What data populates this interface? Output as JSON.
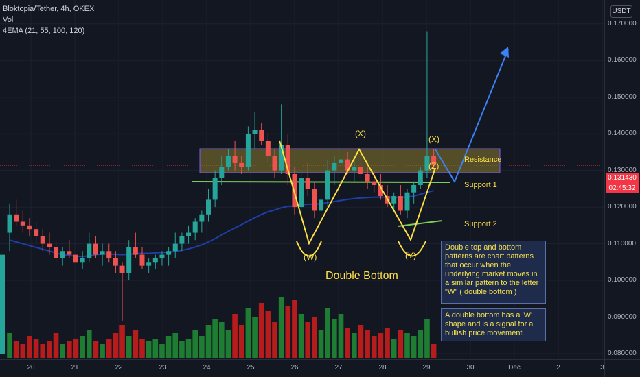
{
  "header": {
    "symbol_line": "Bloktopia/Tether, 4h, OKEX",
    "vol_label": "Vol",
    "ema_label": "4EMA (21, 55, 100, 120)"
  },
  "unit_badge": "USDT",
  "price_tag": {
    "price": "0.131430",
    "countdown": "02:45:32"
  },
  "chart_data": {
    "type": "candlestick",
    "symbol": "Bloktopia/Tether",
    "interval": "4h",
    "exchange": "OKEX",
    "y_ticks": [
      "0.170000",
      "0.160000",
      "0.150000",
      "0.140000",
      "0.130000",
      "0.120000",
      "0.110000",
      "0.100000",
      "0.090000",
      "0.080000"
    ],
    "x_ticks": [
      "20",
      "21",
      "22",
      "23",
      "24",
      "25",
      "26",
      "27",
      "28",
      "29",
      "30",
      "Dec",
      "2",
      "3"
    ],
    "ylim": [
      0.0785,
      0.1765
    ],
    "xlim": [
      19.6,
      3.9
    ],
    "candles": [
      [
        0.113,
        0.121,
        0.108,
        0.118
      ],
      [
        0.118,
        0.122,
        0.115,
        0.116
      ],
      [
        0.116,
        0.119,
        0.113,
        0.115
      ],
      [
        0.115,
        0.117,
        0.112,
        0.114
      ],
      [
        0.114,
        0.116,
        0.11,
        0.112
      ],
      [
        0.112,
        0.114,
        0.108,
        0.11
      ],
      [
        0.11,
        0.113,
        0.107,
        0.109
      ],
      [
        0.109,
        0.111,
        0.105,
        0.106
      ],
      [
        0.106,
        0.109,
        0.104,
        0.108
      ],
      [
        0.108,
        0.111,
        0.106,
        0.107
      ],
      [
        0.107,
        0.11,
        0.104,
        0.105
      ],
      [
        0.105,
        0.108,
        0.103,
        0.106
      ],
      [
        0.106,
        0.113,
        0.105,
        0.11
      ],
      [
        0.11,
        0.112,
        0.106,
        0.107
      ],
      [
        0.107,
        0.11,
        0.104,
        0.108
      ],
      [
        0.108,
        0.11,
        0.105,
        0.106
      ],
      [
        0.106,
        0.108,
        0.102,
        0.104
      ],
      [
        0.104,
        0.105,
        0.089,
        0.102
      ],
      [
        0.102,
        0.111,
        0.1,
        0.109
      ],
      [
        0.109,
        0.113,
        0.106,
        0.107
      ],
      [
        0.107,
        0.109,
        0.103,
        0.104
      ],
      [
        0.104,
        0.106,
        0.102,
        0.105
      ],
      [
        0.105,
        0.107,
        0.103,
        0.106
      ],
      [
        0.106,
        0.108,
        0.104,
        0.107
      ],
      [
        0.107,
        0.109,
        0.104,
        0.108
      ],
      [
        0.108,
        0.113,
        0.106,
        0.11
      ],
      [
        0.11,
        0.113,
        0.108,
        0.112
      ],
      [
        0.112,
        0.115,
        0.11,
        0.113
      ],
      [
        0.113,
        0.117,
        0.111,
        0.116
      ],
      [
        0.116,
        0.119,
        0.113,
        0.118
      ],
      [
        0.118,
        0.125,
        0.116,
        0.122
      ],
      [
        0.122,
        0.13,
        0.12,
        0.128
      ],
      [
        0.128,
        0.134,
        0.126,
        0.131
      ],
      [
        0.131,
        0.136,
        0.13,
        0.134
      ],
      [
        0.134,
        0.138,
        0.13,
        0.132
      ],
      [
        0.132,
        0.134,
        0.129,
        0.131
      ],
      [
        0.131,
        0.142,
        0.13,
        0.14
      ],
      [
        0.14,
        0.146,
        0.136,
        0.141
      ],
      [
        0.141,
        0.143,
        0.137,
        0.138
      ],
      [
        0.138,
        0.14,
        0.132,
        0.134
      ],
      [
        0.134,
        0.136,
        0.128,
        0.13
      ],
      [
        0.13,
        0.148,
        0.129,
        0.137
      ],
      [
        0.137,
        0.14,
        0.126,
        0.129
      ],
      [
        0.129,
        0.131,
        0.118,
        0.12
      ],
      [
        0.12,
        0.13,
        0.117,
        0.128
      ],
      [
        0.128,
        0.132,
        0.123,
        0.125
      ],
      [
        0.125,
        0.127,
        0.117,
        0.119
      ],
      [
        0.119,
        0.124,
        0.117,
        0.122
      ],
      [
        0.122,
        0.133,
        0.12,
        0.13
      ],
      [
        0.13,
        0.134,
        0.126,
        0.132
      ],
      [
        0.132,
        0.136,
        0.129,
        0.133
      ],
      [
        0.133,
        0.135,
        0.129,
        0.13
      ],
      [
        0.13,
        0.133,
        0.127,
        0.131
      ],
      [
        0.131,
        0.134,
        0.128,
        0.129
      ],
      [
        0.129,
        0.131,
        0.125,
        0.127
      ],
      [
        0.127,
        0.13,
        0.124,
        0.126
      ],
      [
        0.126,
        0.129,
        0.122,
        0.123
      ],
      [
        0.123,
        0.126,
        0.12,
        0.121
      ],
      [
        0.121,
        0.124,
        0.119,
        0.123
      ],
      [
        0.123,
        0.126,
        0.118,
        0.119
      ],
      [
        0.119,
        0.125,
        0.117,
        0.124
      ],
      [
        0.124,
        0.127,
        0.121,
        0.126
      ],
      [
        0.126,
        0.131,
        0.125,
        0.13
      ],
      [
        0.13,
        0.168,
        0.128,
        0.134
      ],
      [
        0.134,
        0.136,
        0.13,
        0.1314
      ]
    ],
    "volume": [
      0.09,
      0.06,
      0.05,
      0.08,
      0.07,
      0.05,
      0.06,
      0.09,
      0.05,
      0.06,
      0.07,
      0.08,
      0.1,
      0.06,
      0.05,
      0.07,
      0.09,
      0.12,
      0.08,
      0.1,
      0.07,
      0.06,
      0.07,
      0.05,
      0.08,
      0.09,
      0.06,
      0.07,
      0.1,
      0.08,
      0.12,
      0.14,
      0.13,
      0.1,
      0.16,
      0.12,
      0.18,
      0.15,
      0.2,
      0.17,
      0.13,
      0.22,
      0.19,
      0.21,
      0.16,
      0.13,
      0.15,
      0.1,
      0.18,
      0.14,
      0.16,
      0.11,
      0.09,
      0.12,
      0.1,
      0.08,
      0.09,
      0.11,
      0.07,
      0.1,
      0.09,
      0.08,
      0.1,
      0.14,
      0.05
    ],
    "ema": [
      [
        0.111,
        0.1105,
        0.11,
        0.1095,
        0.109,
        0.1085,
        0.108,
        0.1075,
        0.107,
        0.1068,
        0.1066,
        0.1065,
        0.1067,
        0.107,
        0.1072,
        0.1072,
        0.1071,
        0.107,
        0.1071,
        0.1073,
        0.1074,
        0.1074,
        0.1075,
        0.1076,
        0.1077,
        0.1079,
        0.1082,
        0.1086,
        0.1091,
        0.1097,
        0.1105,
        0.1114,
        0.1124,
        0.1134,
        0.1143,
        0.1152,
        0.1162,
        0.1171,
        0.118,
        0.1187,
        0.1192,
        0.1198,
        0.1202,
        0.1203,
        0.1206,
        0.1208,
        0.1208,
        0.1209,
        0.1212,
        0.1215,
        0.1218,
        0.1221,
        0.1223,
        0.1225,
        0.1226,
        0.1227,
        0.1227,
        0.1227,
        0.1227,
        0.1226,
        0.1228,
        0.123,
        0.1235,
        0.124,
        0.1245
      ]
    ]
  },
  "annotations": {
    "x_left": "(X)",
    "x_right": "(X)",
    "z": "(Z)",
    "w": "(W)",
    "y": "(Y)",
    "resistance": "Resistance",
    "support1": "Support 1",
    "support2": "Support 2",
    "double_bottom": "Double Bottom"
  },
  "info_box_1": "Double top and bottom patterns are chart patterns that occur when the underlying market moves in a similar pattern to the letter \"W\" ( double bottom )",
  "info_box_2": "A double bottom has a 'W' shape and is a signal for a bullish price movement.",
  "colors": {
    "background": "#131722",
    "bull": "#26a69a",
    "bear": "#ef5350",
    "vol_bull": "#1e7d32",
    "vol_bear": "#b71c1c",
    "ema": "#1e3ea8",
    "pattern": "#fde047",
    "resistance_zone": "#8a7b2e",
    "support_line": "#7ccf5a",
    "projection": "#3b82f6"
  }
}
